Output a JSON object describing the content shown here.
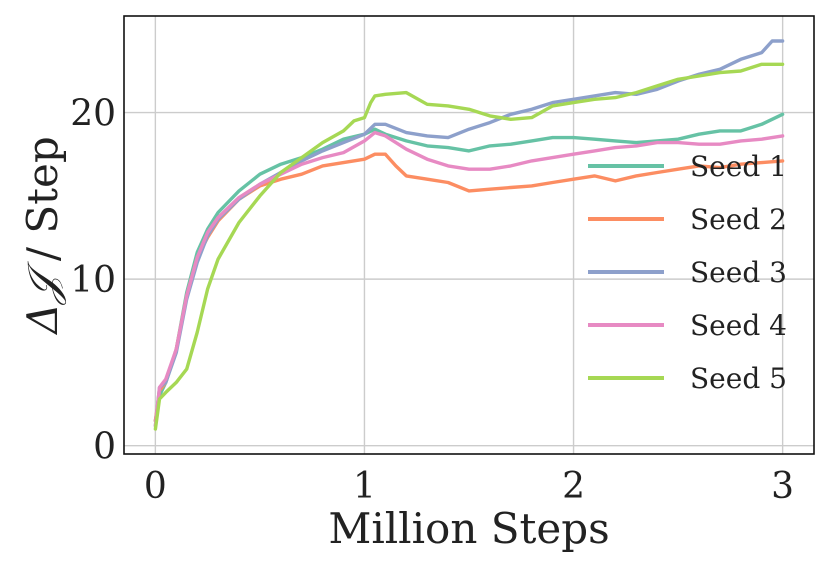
{
  "chart_data": {
    "type": "line",
    "xlabel": "Million Steps",
    "ylabel": "ΔJ / Step",
    "ylabel_parts": {
      "symbol": "Δ𝒥",
      "rest": " / Step"
    },
    "xlim": [
      -0.15,
      3.15
    ],
    "ylim": [
      -0.5,
      25.8
    ],
    "x_ticks": [
      0,
      1,
      2,
      3
    ],
    "y_ticks": [
      0,
      10,
      20
    ],
    "grid": true,
    "legend": {
      "placement": "bottom-right"
    },
    "series": [
      {
        "name": "Seed 1",
        "color": "#66c2a5",
        "points": [
          [
            0,
            1.5
          ],
          [
            0.02,
            3.0
          ],
          [
            0.05,
            3.8
          ],
          [
            0.1,
            5.8
          ],
          [
            0.15,
            9.2
          ],
          [
            0.2,
            11.6
          ],
          [
            0.25,
            13.0
          ],
          [
            0.3,
            14.0
          ],
          [
            0.4,
            15.3
          ],
          [
            0.5,
            16.3
          ],
          [
            0.6,
            16.9
          ],
          [
            0.7,
            17.3
          ],
          [
            0.8,
            17.8
          ],
          [
            0.9,
            18.4
          ],
          [
            1.0,
            18.7
          ],
          [
            1.05,
            19.0
          ],
          [
            1.1,
            18.7
          ],
          [
            1.2,
            18.3
          ],
          [
            1.3,
            18.0
          ],
          [
            1.4,
            17.9
          ],
          [
            1.5,
            17.7
          ],
          [
            1.6,
            18.0
          ],
          [
            1.7,
            18.1
          ],
          [
            1.8,
            18.3
          ],
          [
            1.9,
            18.5
          ],
          [
            2.0,
            18.5
          ],
          [
            2.1,
            18.4
          ],
          [
            2.2,
            18.3
          ],
          [
            2.3,
            18.2
          ],
          [
            2.4,
            18.3
          ],
          [
            2.5,
            18.4
          ],
          [
            2.6,
            18.7
          ],
          [
            2.7,
            18.9
          ],
          [
            2.8,
            18.9
          ],
          [
            2.9,
            19.3
          ],
          [
            3.0,
            19.9
          ]
        ]
      },
      {
        "name": "Seed 2",
        "color": "#fc8d62",
        "points": [
          [
            0,
            1.5
          ],
          [
            0.02,
            3.3
          ],
          [
            0.05,
            3.8
          ],
          [
            0.1,
            5.8
          ],
          [
            0.15,
            9.0
          ],
          [
            0.2,
            11.3
          ],
          [
            0.25,
            12.5
          ],
          [
            0.3,
            13.5
          ],
          [
            0.4,
            14.8
          ],
          [
            0.5,
            15.6
          ],
          [
            0.6,
            16.0
          ],
          [
            0.7,
            16.3
          ],
          [
            0.8,
            16.8
          ],
          [
            0.9,
            17.0
          ],
          [
            1.0,
            17.2
          ],
          [
            1.05,
            17.5
          ],
          [
            1.1,
            17.5
          ],
          [
            1.15,
            16.8
          ],
          [
            1.2,
            16.2
          ],
          [
            1.3,
            16.0
          ],
          [
            1.4,
            15.8
          ],
          [
            1.5,
            15.3
          ],
          [
            1.6,
            15.4
          ],
          [
            1.7,
            15.5
          ],
          [
            1.8,
            15.6
          ],
          [
            1.9,
            15.8
          ],
          [
            2.0,
            16.0
          ],
          [
            2.1,
            16.2
          ],
          [
            2.2,
            15.9
          ],
          [
            2.3,
            16.2
          ],
          [
            2.4,
            16.4
          ],
          [
            2.5,
            16.6
          ],
          [
            2.6,
            16.8
          ],
          [
            2.7,
            16.7
          ],
          [
            2.8,
            16.9
          ],
          [
            2.9,
            17.0
          ],
          [
            3.0,
            17.1
          ]
        ]
      },
      {
        "name": "Seed 3",
        "color": "#8da0cb",
        "points": [
          [
            0,
            1.2
          ],
          [
            0.02,
            3.5
          ],
          [
            0.05,
            3.8
          ],
          [
            0.1,
            5.6
          ],
          [
            0.15,
            8.8
          ],
          [
            0.2,
            11.0
          ],
          [
            0.25,
            12.6
          ],
          [
            0.3,
            13.6
          ],
          [
            0.4,
            14.8
          ],
          [
            0.5,
            15.7
          ],
          [
            0.6,
            16.4
          ],
          [
            0.7,
            17.1
          ],
          [
            0.8,
            17.7
          ],
          [
            0.9,
            18.2
          ],
          [
            1.0,
            18.7
          ],
          [
            1.05,
            19.3
          ],
          [
            1.1,
            19.3
          ],
          [
            1.2,
            18.8
          ],
          [
            1.3,
            18.6
          ],
          [
            1.4,
            18.5
          ],
          [
            1.5,
            19.0
          ],
          [
            1.6,
            19.4
          ],
          [
            1.7,
            19.9
          ],
          [
            1.8,
            20.2
          ],
          [
            1.9,
            20.6
          ],
          [
            2.0,
            20.8
          ],
          [
            2.1,
            21.0
          ],
          [
            2.2,
            21.2
          ],
          [
            2.3,
            21.1
          ],
          [
            2.4,
            21.4
          ],
          [
            2.5,
            21.9
          ],
          [
            2.6,
            22.3
          ],
          [
            2.7,
            22.6
          ],
          [
            2.8,
            23.2
          ],
          [
            2.9,
            23.6
          ],
          [
            2.95,
            24.3
          ],
          [
            3.0,
            24.3
          ]
        ]
      },
      {
        "name": "Seed 4",
        "color": "#e78ac3",
        "points": [
          [
            0,
            1.2
          ],
          [
            0.02,
            3.5
          ],
          [
            0.05,
            4.0
          ],
          [
            0.1,
            5.8
          ],
          [
            0.15,
            9.0
          ],
          [
            0.2,
            11.3
          ],
          [
            0.25,
            12.8
          ],
          [
            0.3,
            13.7
          ],
          [
            0.4,
            14.9
          ],
          [
            0.5,
            15.7
          ],
          [
            0.6,
            16.3
          ],
          [
            0.7,
            16.9
          ],
          [
            0.8,
            17.3
          ],
          [
            0.9,
            17.6
          ],
          [
            1.0,
            18.3
          ],
          [
            1.05,
            18.8
          ],
          [
            1.1,
            18.6
          ],
          [
            1.2,
            17.8
          ],
          [
            1.3,
            17.2
          ],
          [
            1.4,
            16.8
          ],
          [
            1.5,
            16.6
          ],
          [
            1.6,
            16.6
          ],
          [
            1.7,
            16.8
          ],
          [
            1.8,
            17.1
          ],
          [
            1.9,
            17.3
          ],
          [
            2.0,
            17.5
          ],
          [
            2.1,
            17.7
          ],
          [
            2.2,
            17.9
          ],
          [
            2.3,
            18.0
          ],
          [
            2.4,
            18.2
          ],
          [
            2.5,
            18.2
          ],
          [
            2.6,
            18.1
          ],
          [
            2.7,
            18.1
          ],
          [
            2.8,
            18.3
          ],
          [
            2.9,
            18.4
          ],
          [
            3.0,
            18.6
          ]
        ]
      },
      {
        "name": "Seed 5",
        "color": "#a6d854",
        "points": [
          [
            0,
            1.0
          ],
          [
            0.02,
            2.8
          ],
          [
            0.05,
            3.2
          ],
          [
            0.1,
            3.8
          ],
          [
            0.15,
            4.6
          ],
          [
            0.2,
            6.8
          ],
          [
            0.25,
            9.4
          ],
          [
            0.3,
            11.2
          ],
          [
            0.4,
            13.4
          ],
          [
            0.5,
            15.0
          ],
          [
            0.6,
            16.4
          ],
          [
            0.7,
            17.3
          ],
          [
            0.8,
            18.2
          ],
          [
            0.9,
            18.9
          ],
          [
            0.95,
            19.5
          ],
          [
            1.0,
            19.7
          ],
          [
            1.03,
            20.6
          ],
          [
            1.05,
            21.0
          ],
          [
            1.1,
            21.1
          ],
          [
            1.2,
            21.2
          ],
          [
            1.3,
            20.5
          ],
          [
            1.4,
            20.4
          ],
          [
            1.5,
            20.2
          ],
          [
            1.6,
            19.8
          ],
          [
            1.7,
            19.6
          ],
          [
            1.8,
            19.7
          ],
          [
            1.9,
            20.4
          ],
          [
            2.0,
            20.6
          ],
          [
            2.1,
            20.8
          ],
          [
            2.2,
            20.9
          ],
          [
            2.3,
            21.2
          ],
          [
            2.4,
            21.6
          ],
          [
            2.5,
            22.0
          ],
          [
            2.6,
            22.2
          ],
          [
            2.7,
            22.4
          ],
          [
            2.8,
            22.5
          ],
          [
            2.9,
            22.9
          ],
          [
            3.0,
            22.9
          ]
        ]
      }
    ]
  }
}
